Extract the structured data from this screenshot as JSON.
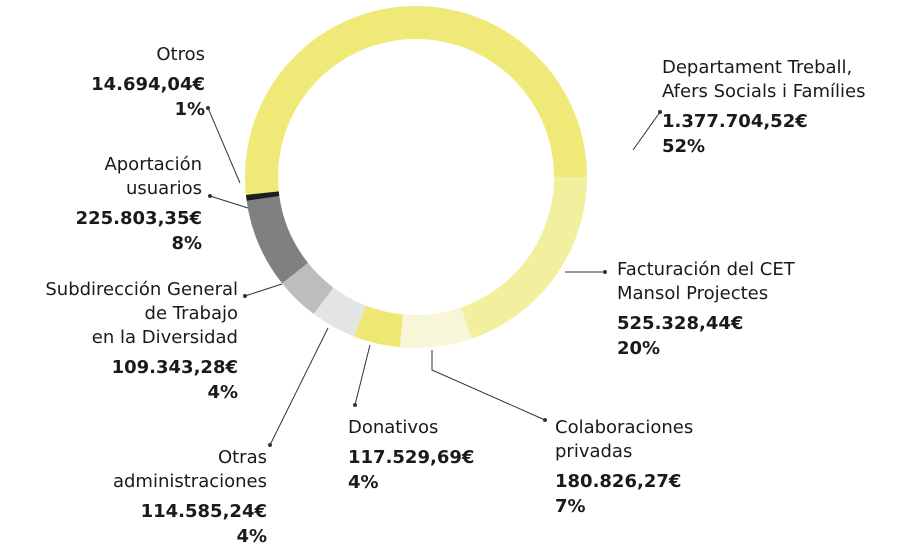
{
  "chart_data": {
    "type": "donut",
    "categories": [
      [
        "Departament Treball,",
        "Afers Socials i Famílies"
      ],
      [
        "Facturación del CET",
        "Mansol Projectes"
      ],
      [
        "Colaboraciones",
        "privadas"
      ],
      [
        "Donativos"
      ],
      [
        "Otras",
        "administraciones"
      ],
      [
        "Subdirección General",
        "de Trabajo",
        "en la Diversidad"
      ],
      [
        "Aportación",
        "usuarios"
      ],
      [
        "Otros"
      ]
    ],
    "values": [
      1377704.52,
      525328.44,
      180826.27,
      117529.69,
      114585.24,
      109343.28,
      225803.35,
      14694.04
    ],
    "value_labels": [
      "1.377.704,52€",
      "525.328,44€",
      "180.826,27€",
      "117.529,69€",
      "114.585,24€",
      "109.343,28€",
      "225.803,35€",
      "14.694,04€"
    ],
    "percents": [
      52,
      20,
      7,
      4,
      4,
      4,
      8,
      1
    ],
    "percent_labels": [
      "52%",
      "20%",
      "7%",
      "4%",
      "4%",
      "4%",
      "8%",
      "1%"
    ],
    "colors": [
      "#efe978",
      "#f2ef9e",
      "#f8f6d9",
      "#eee774",
      "#e4e4e4",
      "#bdbdbd",
      "#808080",
      "#1e1e1e"
    ]
  }
}
